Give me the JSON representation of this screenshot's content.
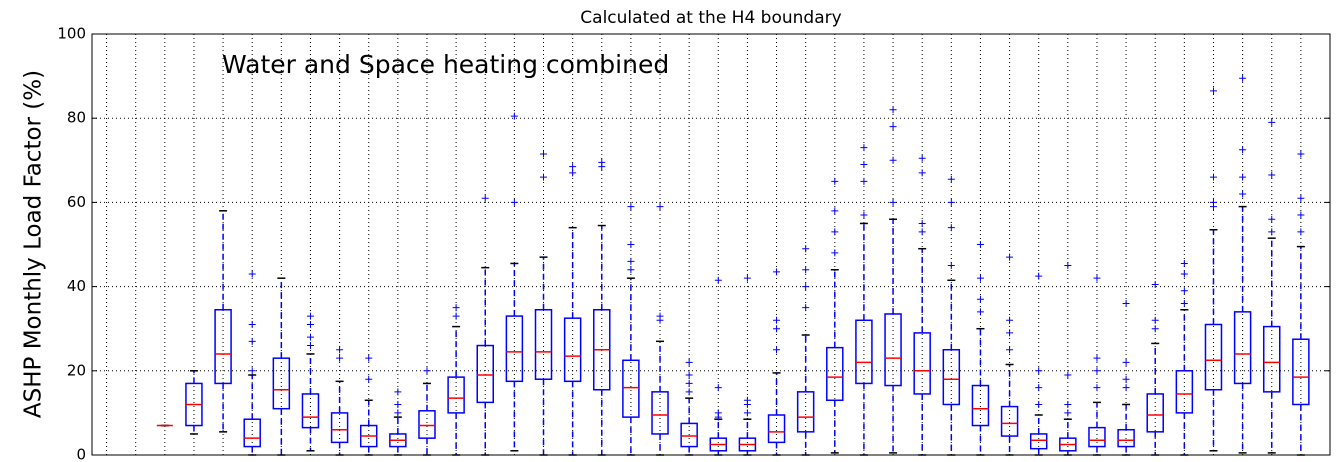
{
  "chart_data": {
    "type": "box",
    "title": "Calculated at the H4 boundary",
    "ylabel": "ASHP Monthly Load Factor (%)",
    "annotation": "Water and Space heating combined",
    "box_color": "#0000ff",
    "median_color": "#ff0000",
    "cap_color": "#000000",
    "flier_color": "#0000ff",
    "grid": true,
    "xlim": [
      0.5,
      43
    ],
    "ylim": [
      0,
      100
    ],
    "yticks": [
      0,
      20,
      40,
      60,
      80,
      100
    ],
    "x": [
      3,
      4,
      5,
      6,
      7,
      8,
      9,
      10,
      11,
      12,
      13,
      14,
      15,
      16,
      17,
      18,
      19,
      20,
      21,
      22,
      23,
      24,
      25,
      26,
      27,
      28,
      29,
      30,
      31,
      32,
      33,
      34,
      35,
      36,
      37,
      38,
      39,
      40,
      41,
      42
    ],
    "whislo": [
      7,
      5,
      5.5,
      0,
      0,
      1,
      0,
      0,
      0,
      0,
      0,
      0,
      1,
      0,
      0,
      0,
      0,
      0,
      0,
      0,
      0,
      0,
      0,
      0.5,
      0,
      0.5,
      0,
      0,
      0,
      0,
      0,
      0,
      0,
      0,
      0,
      0,
      1,
      0.5,
      0.5,
      0
    ],
    "q1": [
      7,
      7,
      17,
      2,
      11,
      6.5,
      3,
      2,
      2,
      4,
      10,
      12.5,
      17.5,
      18,
      17.5,
      15.5,
      9,
      5,
      2,
      1,
      1,
      3,
      5.5,
      13,
      17,
      16.5,
      14.5,
      12,
      7,
      4.5,
      1.5,
      1,
      2,
      2,
      5.5,
      10,
      15.5,
      17,
      15,
      12
    ],
    "median": [
      7,
      12,
      24,
      4,
      15.5,
      9,
      6,
      4.5,
      3.5,
      7,
      13.5,
      19,
      24.5,
      24.5,
      23.5,
      25,
      16,
      9.5,
      4.5,
      2.5,
      2.5,
      5.5,
      9,
      18.5,
      22,
      23,
      20,
      18,
      11,
      7.5,
      3.5,
      2.5,
      3.5,
      3.5,
      9.5,
      14.5,
      22.5,
      24,
      22,
      18.5
    ],
    "q3": [
      7,
      17,
      34.5,
      8.5,
      23,
      14.5,
      10,
      7,
      5,
      10.5,
      18.5,
      26,
      33,
      34.5,
      32.5,
      34.5,
      22.5,
      15,
      7.5,
      4,
      4,
      9.5,
      15,
      25.5,
      32,
      33.5,
      29,
      25,
      16.5,
      11.5,
      5,
      4,
      6.5,
      6,
      14.5,
      20,
      31,
      34,
      30.5,
      27.5
    ],
    "whishi": [
      7,
      20,
      58,
      19,
      42,
      24,
      17.5,
      13,
      9,
      17,
      30.5,
      44.5,
      45.5,
      47,
      54,
      54.5,
      42,
      27,
      13.5,
      8.5,
      8.5,
      19.5,
      28.5,
      44,
      55,
      56,
      49,
      41.5,
      30,
      21.5,
      9.5,
      8.5,
      12.5,
      12,
      26.5,
      34.5,
      53.5,
      59,
      51.5,
      49.5
    ],
    "fliers": [
      [],
      [],
      [],
      [
        20,
        27,
        31,
        43
      ],
      [],
      [
        26,
        28,
        31,
        33
      ],
      [
        23,
        25
      ],
      [
        18,
        23
      ],
      [
        10,
        12,
        15
      ],
      [
        20
      ],
      [
        33,
        35
      ],
      [
        61
      ],
      [
        60,
        80.5
      ],
      [
        66,
        71.5
      ],
      [
        67,
        68.5
      ],
      [
        68.5,
        69.5
      ],
      [
        44,
        46,
        50,
        59
      ],
      [
        32,
        33,
        59
      ],
      [
        15,
        17,
        19,
        22
      ],
      [
        9,
        10,
        16,
        41.5
      ],
      [
        10,
        12,
        13,
        42
      ],
      [
        25,
        30,
        32,
        43.5
      ],
      [
        35,
        40,
        44,
        49
      ],
      [
        48,
        53,
        58,
        65
      ],
      [
        57,
        65,
        69,
        73
      ],
      [
        60,
        70,
        78,
        82
      ],
      [
        53,
        55,
        67,
        70.5
      ],
      [
        45,
        54,
        60,
        65.5
      ],
      [
        34,
        37,
        42,
        50
      ],
      [
        25,
        29,
        32,
        47
      ],
      [
        12,
        16,
        20,
        42.5
      ],
      [
        10,
        12,
        19,
        45
      ],
      [
        16,
        20,
        23,
        42
      ],
      [
        16,
        18,
        22,
        36
      ],
      [
        30,
        32,
        40.5
      ],
      [
        36,
        39,
        43,
        45.5
      ],
      [
        59,
        60,
        66,
        86.5
      ],
      [
        62,
        66,
        72.5,
        89.5
      ],
      [
        53,
        56,
        66.5,
        79
      ],
      [
        53,
        57,
        61,
        71.5
      ]
    ]
  }
}
